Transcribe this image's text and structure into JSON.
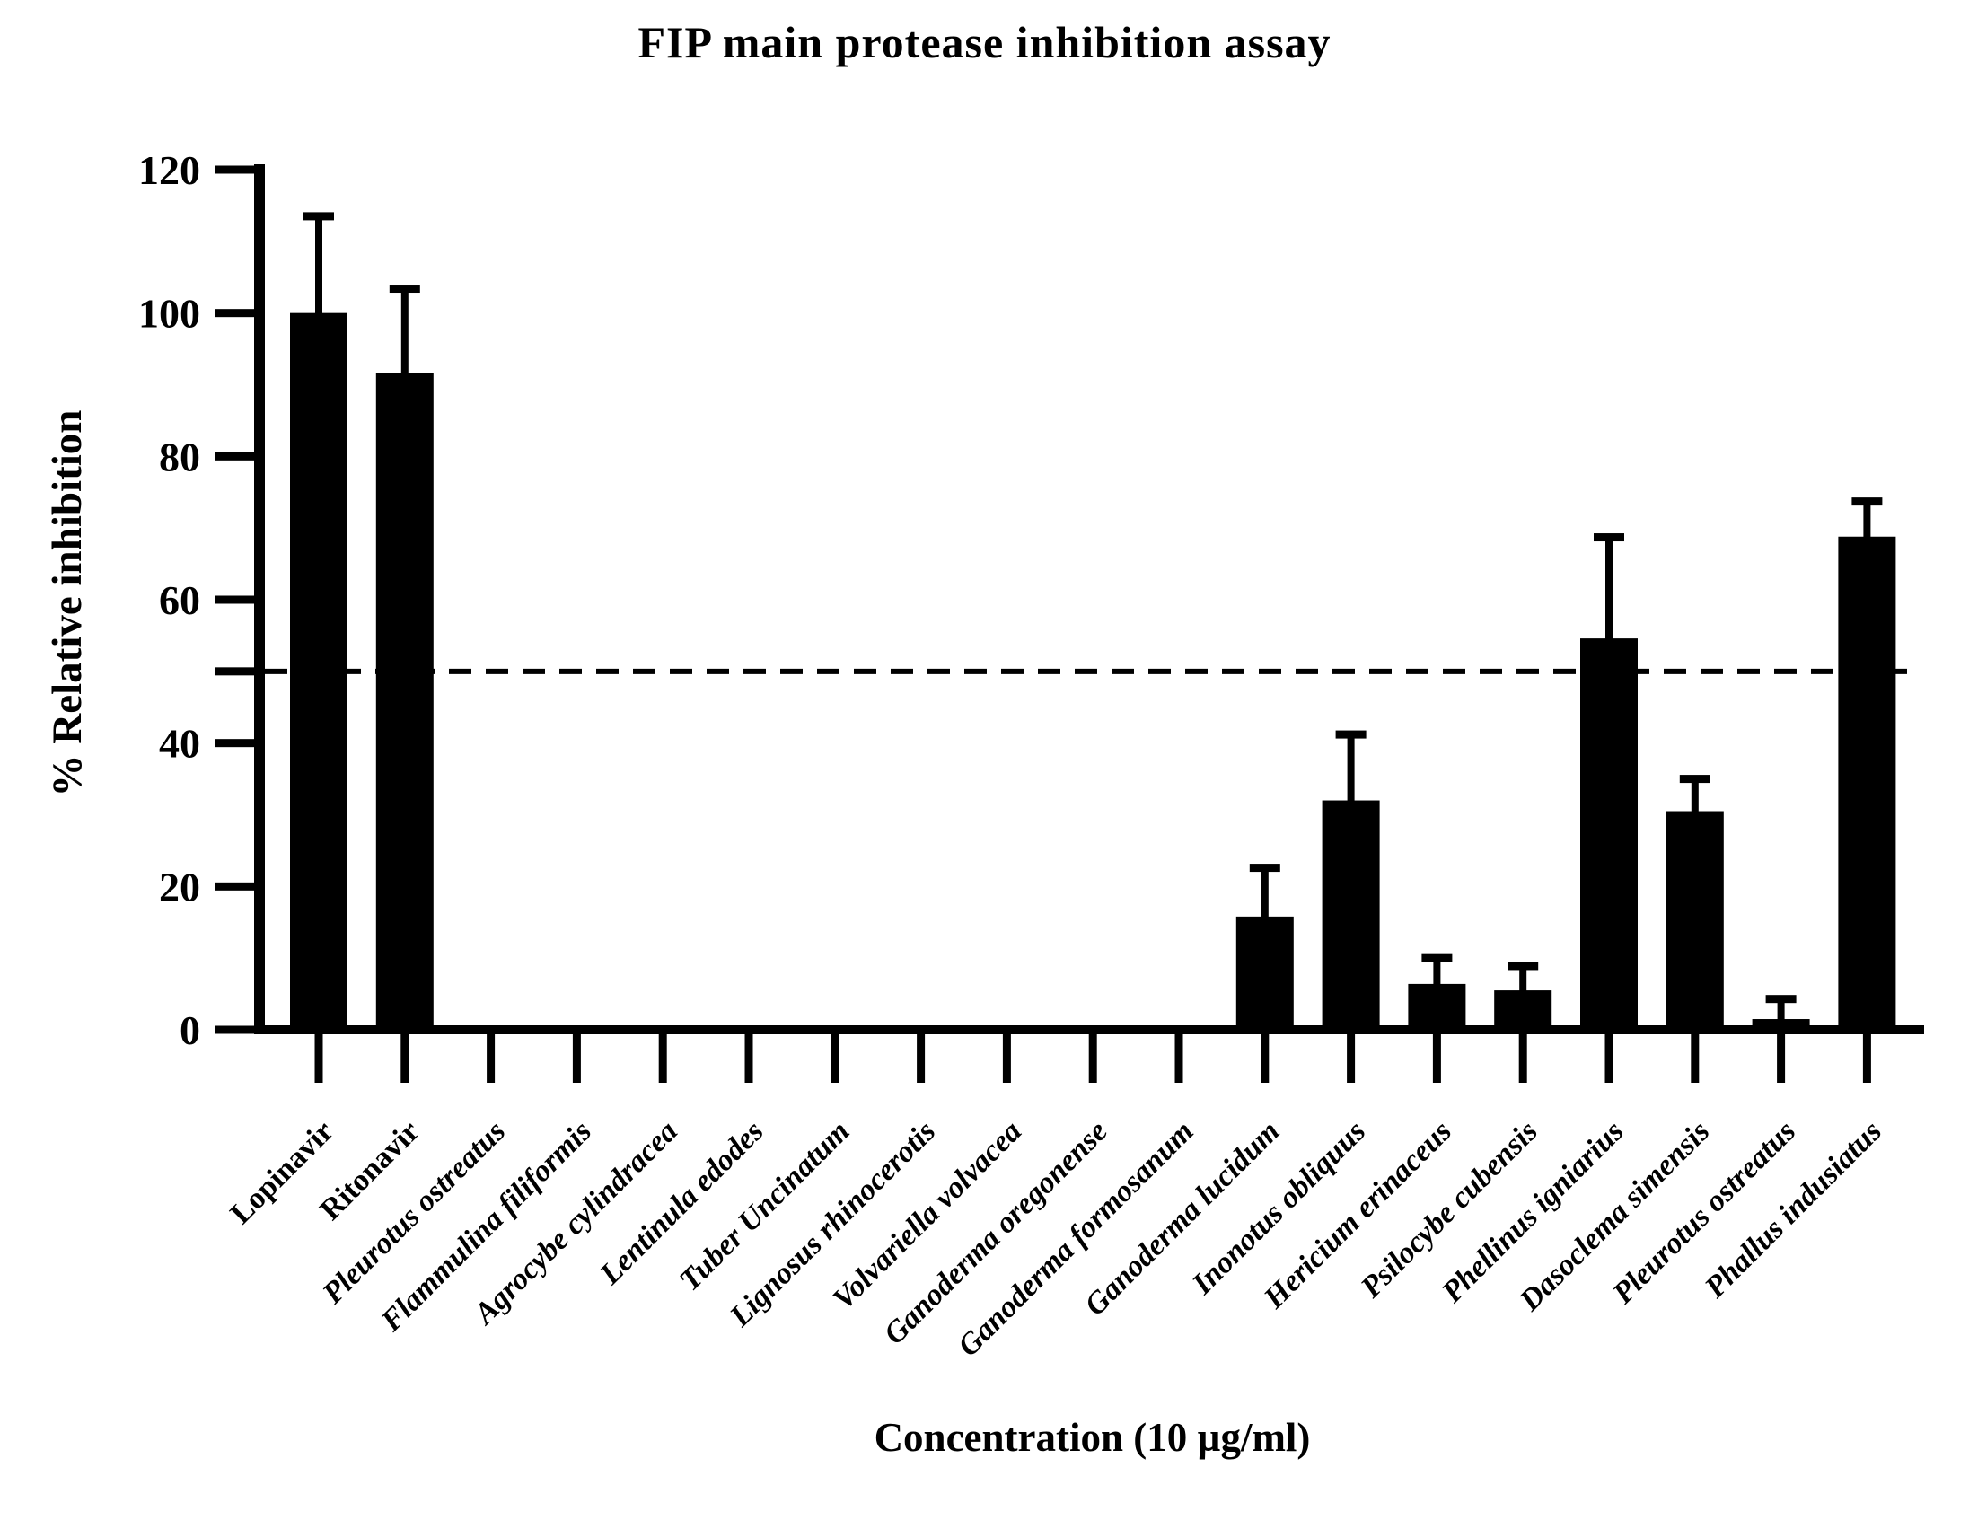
{
  "chart_data": {
    "type": "bar",
    "title": "FIP main protease inhibition assay",
    "ylabel": "% Relative inhibition",
    "xlabel": "Concentration (10 µg/ml)",
    "ylim": [
      0,
      120
    ],
    "yticks": [
      0,
      20,
      40,
      60,
      80,
      100,
      120
    ],
    "reference_line_y": 50,
    "grid": false,
    "legend": "none",
    "bar_color": "#000000",
    "axis_color": "#000000",
    "categories": [
      "Lopinavir",
      "Ritonavir",
      "Pleurotus ostreatus",
      "Flammulina filiformis",
      "Agrocybe cylindracea",
      "Lentinula edodes",
      "Tuber Uncinatum",
      "Lignosus rhinocerotis",
      "Volvariella volvacea",
      "Ganoderma oregonense",
      "Ganoderma formosanum",
      "Ganoderma lucidum",
      "Inonotus obliquus",
      "Hericium erinaceus",
      "Psilocybe cubensis",
      "Phellinus igniarius",
      "Dasoclema simensis",
      "Pleurotus ostreatus",
      "Phallus indusiatus"
    ],
    "values": [
      100,
      91.6,
      0,
      0,
      0,
      0,
      0,
      0,
      0,
      0,
      0,
      15.8,
      32,
      6.4,
      5.5,
      54.6,
      30.5,
      1.5,
      68.8
    ],
    "errors": [
      13.5,
      11.8,
      0,
      0,
      0,
      0,
      0,
      0,
      0,
      0,
      0,
      6.8,
      9.2,
      3.6,
      3.4,
      14.1,
      4.5,
      2.8,
      4.9
    ],
    "italic_from_index": 2
  }
}
